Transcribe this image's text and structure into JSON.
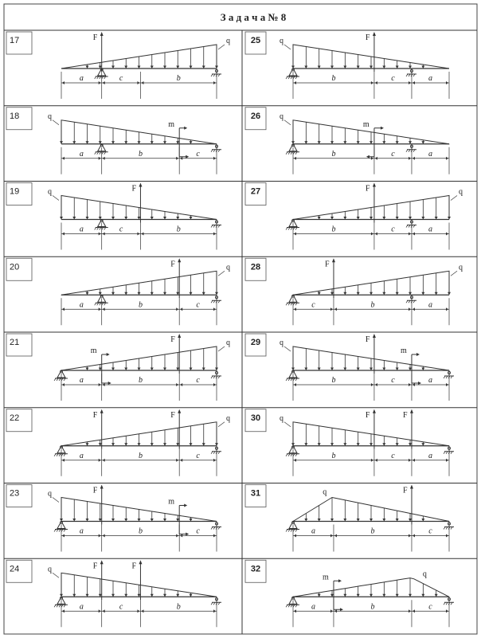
{
  "title": "З а д а ч а  № 8",
  "load_label": "q",
  "force_label": "F",
  "moment_label": "m",
  "problems": [
    {
      "num": "17",
      "segments": [
        "a",
        "c",
        "b"
      ],
      "load_q": "rise",
      "elements": [
        {
          "t": "F",
          "at": 1,
          "dir": "up"
        }
      ],
      "supports": [
        {
          "t": "pin",
          "at": 1
        },
        {
          "t": "roller",
          "at": 3
        }
      ]
    },
    {
      "num": "18",
      "segments": [
        "a",
        "b",
        "c"
      ],
      "load_q": "fall",
      "elements": [
        {
          "t": "m",
          "at": 2,
          "dir": "cw"
        }
      ],
      "supports": [
        {
          "t": "pin",
          "at": 1
        },
        {
          "t": "roller",
          "at": 3
        }
      ]
    },
    {
      "num": "19",
      "segments": [
        "a",
        "c",
        "b"
      ],
      "load_q": "fall",
      "elements": [
        {
          "t": "F",
          "at": 2,
          "dir": "up"
        }
      ],
      "supports": [
        {
          "t": "pin",
          "at": 1
        },
        {
          "t": "roller",
          "at": 3
        }
      ]
    },
    {
      "num": "20",
      "segments": [
        "a",
        "b",
        "c"
      ],
      "load_q": "rise",
      "elements": [
        {
          "t": "F",
          "at": 2,
          "dir": "up"
        }
      ],
      "supports": [
        {
          "t": "pin",
          "at": 1
        },
        {
          "t": "roller",
          "at": 3
        }
      ]
    },
    {
      "num": "21",
      "segments": [
        "a",
        "b",
        "c"
      ],
      "load_q": "rise",
      "elements": [
        {
          "t": "m",
          "at": 1,
          "dir": "cw"
        },
        {
          "t": "F",
          "at": 2,
          "dir": "up"
        }
      ],
      "supports": [
        {
          "t": "pin",
          "at": 0
        },
        {
          "t": "roller",
          "at": 3
        }
      ]
    },
    {
      "num": "22",
      "segments": [
        "a",
        "b",
        "c"
      ],
      "load_q": "rise",
      "elements": [
        {
          "t": "F",
          "at": 1,
          "dir": "up"
        },
        {
          "t": "F",
          "at": 2,
          "dir": "up"
        }
      ],
      "supports": [
        {
          "t": "pin",
          "at": 0
        },
        {
          "t": "roller",
          "at": 3
        }
      ]
    },
    {
      "num": "23",
      "segments": [
        "a",
        "b",
        "c"
      ],
      "load_q": "fall",
      "elements": [
        {
          "t": "F",
          "at": 1,
          "dir": "up"
        },
        {
          "t": "m",
          "at": 2,
          "dir": "cw"
        }
      ],
      "supports": [
        {
          "t": "pin",
          "at": 0
        },
        {
          "t": "roller",
          "at": 3
        }
      ]
    },
    {
      "num": "24",
      "segments": [
        "a",
        "c",
        "b"
      ],
      "load_q": "fall",
      "elements": [
        {
          "t": "F",
          "at": 1,
          "dir": "up"
        },
        {
          "t": "F",
          "at": 2,
          "dir": "up"
        }
      ],
      "supports": [
        {
          "t": "pin",
          "at": 0
        },
        {
          "t": "roller",
          "at": 3
        }
      ]
    },
    {
      "num": "25",
      "segments": [
        "b",
        "c",
        "a"
      ],
      "load_q": "fall",
      "elements": [
        {
          "t": "F",
          "at": 1,
          "dir": "up"
        }
      ],
      "supports": [
        {
          "t": "pin",
          "at": 0
        },
        {
          "t": "roller",
          "at": 2
        }
      ]
    },
    {
      "num": "26",
      "segments": [
        "b",
        "c",
        "a"
      ],
      "load_q": "fall",
      "elements": [
        {
          "t": "m",
          "at": 1,
          "dir": "ccw"
        }
      ],
      "supports": [
        {
          "t": "pin",
          "at": 0
        },
        {
          "t": "roller",
          "at": 2
        }
      ]
    },
    {
      "num": "27",
      "segments": [
        "b",
        "c",
        "a"
      ],
      "load_q": "rise",
      "elements": [
        {
          "t": "F",
          "at": 1,
          "dir": "up"
        }
      ],
      "supports": [
        {
          "t": "pin",
          "at": 0
        },
        {
          "t": "roller",
          "at": 2
        }
      ]
    },
    {
      "num": "28",
      "segments": [
        "c",
        "b",
        "a"
      ],
      "load_q": "rise",
      "elements": [
        {
          "t": "F",
          "at": 1,
          "dir": "up"
        }
      ],
      "supports": [
        {
          "t": "pin",
          "at": 0
        },
        {
          "t": "roller",
          "at": 2
        }
      ]
    },
    {
      "num": "29",
      "segments": [
        "b",
        "c",
        "a"
      ],
      "load_q": "fall",
      "elements": [
        {
          "t": "F",
          "at": 1,
          "dir": "up"
        },
        {
          "t": "m",
          "at": 2,
          "dir": "cw"
        }
      ],
      "supports": [
        {
          "t": "pin",
          "at": 0
        },
        {
          "t": "roller",
          "at": 3
        }
      ]
    },
    {
      "num": "30",
      "segments": [
        "b",
        "c",
        "a"
      ],
      "load_q": "fall",
      "elements": [
        {
          "t": "F",
          "at": 1,
          "dir": "up"
        },
        {
          "t": "F",
          "at": 2,
          "dir": "up"
        }
      ],
      "supports": [
        {
          "t": "pin",
          "at": 0
        },
        {
          "t": "roller",
          "at": 3
        }
      ]
    },
    {
      "num": "31",
      "segments": [
        "a",
        "b",
        "c"
      ],
      "load_q": "peak1",
      "elements": [
        {
          "t": "F",
          "at": 2,
          "dir": "up"
        }
      ],
      "supports": [
        {
          "t": "pin",
          "at": 0
        },
        {
          "t": "roller",
          "at": 3
        }
      ]
    },
    {
      "num": "32",
      "segments": [
        "a",
        "b",
        "c"
      ],
      "load_q": "peak2",
      "elements": [
        {
          "t": "m",
          "at": 1,
          "dir": "cw"
        }
      ],
      "supports": [
        {
          "t": "pin",
          "at": 0
        },
        {
          "t": "roller",
          "at": 3
        }
      ]
    }
  ]
}
